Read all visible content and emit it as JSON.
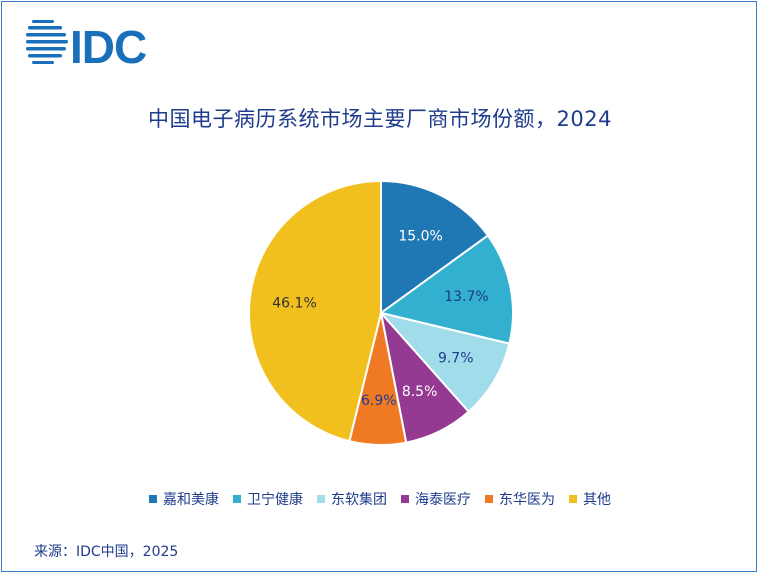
{
  "brand": {
    "logo_text": "IDC",
    "logo_color": "#1a6fba"
  },
  "source_text": "来源：IDC中国，2025",
  "chart_data": {
    "type": "pie",
    "title": "中国电子病历系统市场主要厂商市场份额，2024",
    "start_angle_deg": 0,
    "direction": "clockwise",
    "legend_position": "bottom",
    "slices": [
      {
        "name": "嘉和美康",
        "value": 15.0,
        "label": "15.0%",
        "color": "#1f77b4",
        "label_color": "#ffffff"
      },
      {
        "name": "卫宁健康",
        "value": 13.7,
        "label": "13.7%",
        "color": "#33b0cf",
        "label_color": "#1f3c8c"
      },
      {
        "name": "东软集团",
        "value": 9.7,
        "label": "9.7%",
        "color": "#a0dce9",
        "label_color": "#1f3c8c"
      },
      {
        "name": "海泰医疗",
        "value": 8.5,
        "label": "8.5%",
        "color": "#953a92",
        "label_color": "#ffffff"
      },
      {
        "name": "东华医为",
        "value": 6.9,
        "label": "6.9%",
        "color": "#f07a24",
        "label_color": "#1f3c8c"
      },
      {
        "name": "其他",
        "value": 46.1,
        "label": "46.1%",
        "color": "#f2c01e",
        "label_color": "#333333"
      }
    ]
  }
}
